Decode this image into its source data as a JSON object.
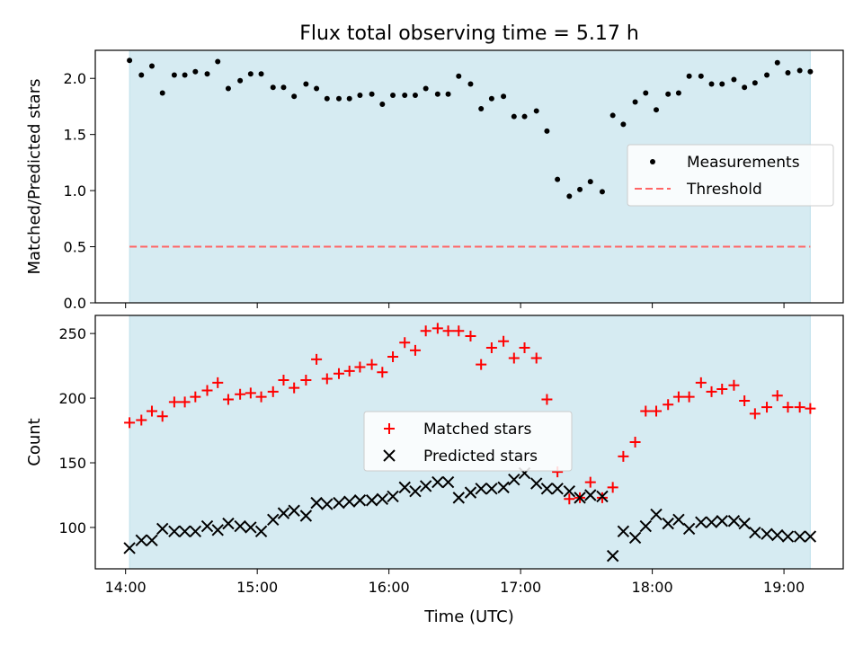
{
  "title": "Flux total observing time = 5.17 h",
  "xlabel": "Time (UTC)",
  "colors": {
    "span": "#add8e6",
    "threshold": "#ff6666",
    "matched": "#ff0000",
    "predicted": "#000000",
    "measurement": "#000000"
  },
  "chart_data": [
    {
      "type": "scatter",
      "ylabel": "Matched/Predicted stars",
      "ylim": [
        0,
        2.25
      ],
      "yticks": [
        0,
        0.5,
        1.0,
        1.5,
        2.0
      ],
      "ytick_labels": [
        "0.0",
        "0.5",
        "1.0",
        "1.5",
        "2.0"
      ],
      "xlim": [
        13.77,
        19.45
      ],
      "span": [
        14.03,
        19.2
      ],
      "grid": false,
      "legend_position": "center-right",
      "series": [
        {
          "name": "Measurements",
          "kind": "dots",
          "points": [
            [
              14.03,
              2.16
            ],
            [
              14.12,
              2.03
            ],
            [
              14.2,
              2.11
            ],
            [
              14.28,
              1.87
            ],
            [
              14.37,
              2.03
            ],
            [
              14.45,
              2.03
            ],
            [
              14.53,
              2.06
            ],
            [
              14.62,
              2.04
            ],
            [
              14.7,
              2.15
            ],
            [
              14.78,
              1.91
            ],
            [
              14.87,
              1.98
            ],
            [
              14.95,
              2.04
            ],
            [
              15.03,
              2.04
            ],
            [
              15.12,
              1.92
            ],
            [
              15.2,
              1.92
            ],
            [
              15.28,
              1.84
            ],
            [
              15.37,
              1.95
            ],
            [
              15.45,
              1.91
            ],
            [
              15.53,
              1.82
            ],
            [
              15.62,
              1.82
            ],
            [
              15.7,
              1.82
            ],
            [
              15.78,
              1.85
            ],
            [
              15.87,
              1.86
            ],
            [
              15.95,
              1.77
            ],
            [
              16.03,
              1.85
            ],
            [
              16.12,
              1.85
            ],
            [
              16.2,
              1.85
            ],
            [
              16.28,
              1.91
            ],
            [
              16.37,
              1.86
            ],
            [
              16.45,
              1.86
            ],
            [
              16.53,
              2.02
            ],
            [
              16.62,
              1.95
            ],
            [
              16.7,
              1.73
            ],
            [
              16.78,
              1.82
            ],
            [
              16.87,
              1.84
            ],
            [
              16.95,
              1.66
            ],
            [
              17.03,
              1.66
            ],
            [
              17.12,
              1.71
            ],
            [
              17.2,
              1.53
            ],
            [
              17.28,
              1.1
            ],
            [
              17.37,
              0.95
            ],
            [
              17.45,
              1.01
            ],
            [
              17.53,
              1.08
            ],
            [
              17.62,
              0.99
            ],
            [
              17.7,
              1.67
            ],
            [
              17.78,
              1.59
            ],
            [
              17.87,
              1.79
            ],
            [
              17.95,
              1.87
            ],
            [
              18.03,
              1.72
            ],
            [
              18.12,
              1.86
            ],
            [
              18.2,
              1.87
            ],
            [
              18.28,
              2.02
            ],
            [
              18.37,
              2.02
            ],
            [
              18.45,
              1.95
            ],
            [
              18.53,
              1.95
            ],
            [
              18.62,
              1.99
            ],
            [
              18.7,
              1.92
            ],
            [
              18.78,
              1.96
            ],
            [
              18.87,
              2.03
            ],
            [
              18.95,
              2.14
            ],
            [
              19.03,
              2.05
            ],
            [
              19.12,
              2.07
            ],
            [
              19.2,
              2.06
            ]
          ]
        },
        {
          "name": "Threshold",
          "kind": "dashed-line",
          "points": [
            [
              14.03,
              0.5
            ],
            [
              19.2,
              0.5
            ]
          ]
        }
      ]
    },
    {
      "type": "scatter",
      "ylabel": "Count",
      "ylim": [
        68,
        264
      ],
      "yticks": [
        100,
        150,
        200,
        250
      ],
      "ytick_labels": [
        "100",
        "150",
        "200",
        "250"
      ],
      "xlim": [
        13.77,
        19.45
      ],
      "xticks": [
        14,
        15,
        16,
        17,
        18,
        19
      ],
      "xtick_labels": [
        "14:00",
        "15:00",
        "16:00",
        "17:00",
        "18:00",
        "19:00"
      ],
      "span": [
        14.03,
        19.2
      ],
      "grid": false,
      "legend_position": "center",
      "series": [
        {
          "name": "Matched stars",
          "kind": "plus",
          "points": [
            [
              14.03,
              181
            ],
            [
              14.12,
              183
            ],
            [
              14.2,
              190
            ],
            [
              14.28,
              186
            ],
            [
              14.37,
              197
            ],
            [
              14.45,
              197
            ],
            [
              14.53,
              201
            ],
            [
              14.62,
              206
            ],
            [
              14.7,
              212
            ],
            [
              14.78,
              199
            ],
            [
              14.87,
              203
            ],
            [
              14.95,
              204
            ],
            [
              15.03,
              201
            ],
            [
              15.12,
              205
            ],
            [
              15.2,
              214
            ],
            [
              15.28,
              208
            ],
            [
              15.37,
              214
            ],
            [
              15.45,
              230
            ],
            [
              15.53,
              215
            ],
            [
              15.62,
              219
            ],
            [
              15.7,
              221
            ],
            [
              15.78,
              224
            ],
            [
              15.87,
              226
            ],
            [
              15.95,
              220
            ],
            [
              16.03,
              232
            ],
            [
              16.12,
              243
            ],
            [
              16.2,
              237
            ],
            [
              16.28,
              252
            ],
            [
              16.37,
              254
            ],
            [
              16.45,
              252
            ],
            [
              16.53,
              252
            ],
            [
              16.62,
              248
            ],
            [
              16.7,
              226
            ],
            [
              16.78,
              239
            ],
            [
              16.87,
              244
            ],
            [
              16.95,
              231
            ],
            [
              17.03,
              239
            ],
            [
              17.12,
              231
            ],
            [
              17.2,
              199
            ],
            [
              17.28,
              143
            ],
            [
              17.37,
              122
            ],
            [
              17.45,
              123
            ],
            [
              17.53,
              135
            ],
            [
              17.62,
              123
            ],
            [
              17.7,
              131
            ],
            [
              17.78,
              155
            ],
            [
              17.87,
              166
            ],
            [
              17.95,
              190
            ],
            [
              18.03,
              190
            ],
            [
              18.12,
              195
            ],
            [
              18.2,
              201
            ],
            [
              18.28,
              201
            ],
            [
              18.37,
              212
            ],
            [
              18.45,
              205
            ],
            [
              18.53,
              207
            ],
            [
              18.62,
              210
            ],
            [
              18.7,
              198
            ],
            [
              18.78,
              188
            ],
            [
              18.87,
              193
            ],
            [
              18.95,
              202
            ],
            [
              19.03,
              193
            ],
            [
              19.12,
              193
            ],
            [
              19.2,
              192
            ]
          ]
        },
        {
          "name": "Predicted stars",
          "kind": "cross",
          "points": [
            [
              14.03,
              84
            ],
            [
              14.12,
              90
            ],
            [
              14.2,
              90
            ],
            [
              14.28,
              99
            ],
            [
              14.37,
              97
            ],
            [
              14.45,
              97
            ],
            [
              14.53,
              97
            ],
            [
              14.62,
              101
            ],
            [
              14.7,
              98
            ],
            [
              14.78,
              103
            ],
            [
              14.87,
              101
            ],
            [
              14.95,
              100
            ],
            [
              15.03,
              97
            ],
            [
              15.12,
              106
            ],
            [
              15.2,
              111
            ],
            [
              15.28,
              113
            ],
            [
              15.37,
              109
            ],
            [
              15.45,
              119
            ],
            [
              15.53,
              118
            ],
            [
              15.62,
              119
            ],
            [
              15.7,
              120
            ],
            [
              15.78,
              121
            ],
            [
              15.87,
              121
            ],
            [
              15.95,
              122
            ],
            [
              16.03,
              124
            ],
            [
              16.12,
              131
            ],
            [
              16.2,
              128
            ],
            [
              16.28,
              132
            ],
            [
              16.37,
              135
            ],
            [
              16.45,
              135
            ],
            [
              16.53,
              123
            ],
            [
              16.62,
              127
            ],
            [
              16.7,
              130
            ],
            [
              16.78,
              130
            ],
            [
              16.87,
              131
            ],
            [
              16.95,
              137
            ],
            [
              17.03,
              142
            ],
            [
              17.12,
              134
            ],
            [
              17.2,
              130
            ],
            [
              17.28,
              130
            ],
            [
              17.37,
              128
            ],
            [
              17.45,
              123
            ],
            [
              17.53,
              125
            ],
            [
              17.62,
              124
            ],
            [
              17.7,
              78
            ],
            [
              17.78,
              97
            ],
            [
              17.87,
              92
            ],
            [
              17.95,
              101
            ],
            [
              18.03,
              110
            ],
            [
              18.12,
              103
            ],
            [
              18.2,
              106
            ],
            [
              18.28,
              99
            ],
            [
              18.37,
              104
            ],
            [
              18.45,
              104
            ],
            [
              18.53,
              105
            ],
            [
              18.62,
              105
            ],
            [
              18.7,
              103
            ],
            [
              18.78,
              96
            ],
            [
              18.87,
              95
            ],
            [
              18.95,
              94
            ],
            [
              19.03,
              93
            ],
            [
              19.12,
              93
            ],
            [
              19.2,
              93
            ]
          ]
        }
      ]
    }
  ]
}
